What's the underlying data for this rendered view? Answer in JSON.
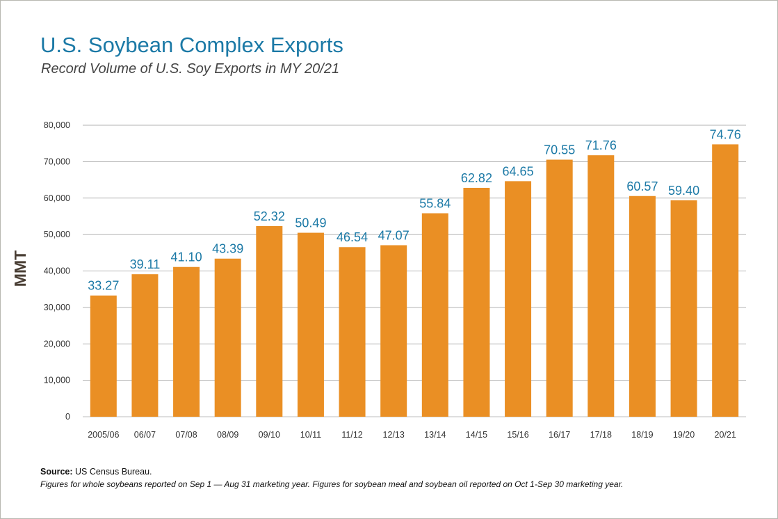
{
  "chart_data": {
    "type": "bar",
    "title": "U.S. Soybean Complex Exports",
    "subtitle": "Record Volume of U.S. Soy Exports in MY 20/21",
    "ylabel": "MMT",
    "xlabel": "",
    "categories": [
      "2005/06",
      "06/07",
      "07/08",
      "08/09",
      "09/10",
      "10/11",
      "11/12",
      "12/13",
      "13/14",
      "14/15",
      "15/16",
      "16/17",
      "17/18",
      "18/19",
      "19/20",
      "20/21"
    ],
    "values": [
      33270,
      39110,
      41100,
      43390,
      52320,
      50490,
      46540,
      47070,
      55840,
      62820,
      64650,
      70550,
      71760,
      60570,
      59400,
      74760
    ],
    "data_labels": [
      "33.27",
      "39.11",
      "41.10",
      "43.39",
      "52.32",
      "50.49",
      "46.54",
      "47.07",
      "55.84",
      "62.82",
      "64.65",
      "70.55",
      "71.76",
      "60.57",
      "59.40",
      "74.76"
    ],
    "yticks": [
      "0",
      "10,000",
      "20,000",
      "30,000",
      "40,000",
      "50,000",
      "60,000",
      "70,000",
      "80,000"
    ],
    "ylim": [
      0,
      80000
    ],
    "grid": true,
    "legend": "none",
    "bar_color": "#ea8f24",
    "label_color": "#1b79a6"
  },
  "source": {
    "label": "Source:",
    "text": " US Census Bureau.",
    "note": "Figures for whole soybeans reported on Sep 1 — Aug 31 marketing year. Figures for soybean meal and soybean oil reported on Oct 1-Sep 30 marketing year."
  }
}
